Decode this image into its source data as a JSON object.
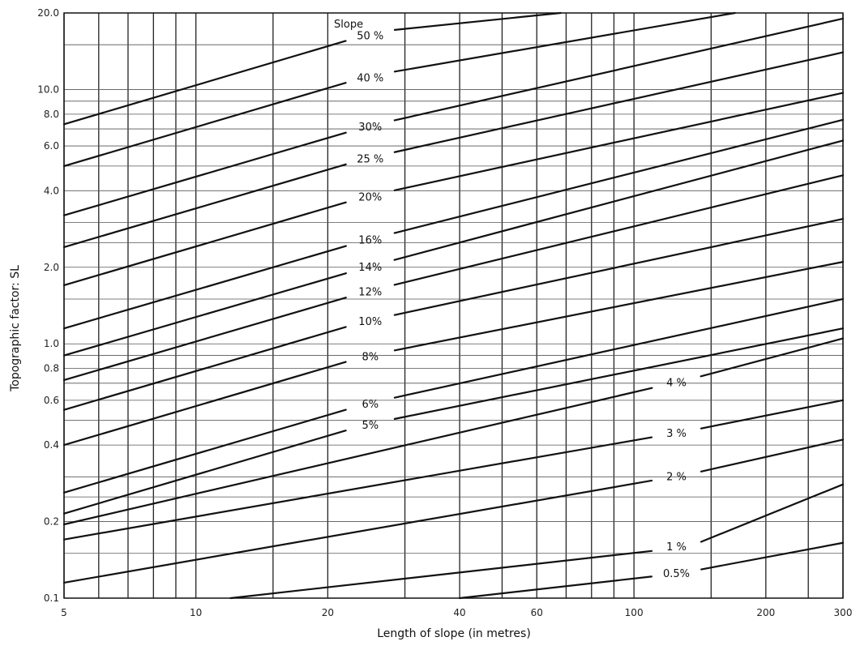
{
  "chart_data": {
    "type": "line",
    "title": "",
    "xlabel": "Length of slope (in metres)",
    "ylabel": "Topographic factor: SL",
    "xscale": "log",
    "yscale": "log",
    "xlim": [
      5,
      300
    ],
    "ylim": [
      0.1,
      20.0
    ],
    "grid": true,
    "legend_title": "Slope",
    "x_ticks": [
      {
        "value": 5,
        "label": "5"
      },
      {
        "value": 10,
        "label": "10"
      },
      {
        "value": 20,
        "label": "20"
      },
      {
        "value": 40,
        "label": "40"
      },
      {
        "value": 60,
        "label": "60"
      },
      {
        "value": 100,
        "label": "100"
      },
      {
        "value": 200,
        "label": "200"
      },
      {
        "value": 300,
        "label": "300"
      }
    ],
    "y_ticks": [
      {
        "value": 0.1,
        "label": "0.1"
      },
      {
        "value": 0.2,
        "label": "0.2"
      },
      {
        "value": 0.4,
        "label": "0.4"
      },
      {
        "value": 0.6,
        "label": "0.6"
      },
      {
        "value": 0.8,
        "label": "0.8"
      },
      {
        "value": 1.0,
        "label": "1.0"
      },
      {
        "value": 2.0,
        "label": "2.0"
      },
      {
        "value": 4.0,
        "label": "4.0"
      },
      {
        "value": 6.0,
        "label": "6.0"
      },
      {
        "value": 8.0,
        "label": "8.0"
      },
      {
        "value": 10.0,
        "label": "10.0"
      },
      {
        "value": 20.0,
        "label": "20.0"
      }
    ],
    "x_grid": [
      5,
      6,
      7,
      8,
      9,
      10,
      15,
      20,
      30,
      40,
      50,
      60,
      70,
      80,
      90,
      100,
      150,
      200,
      250,
      300
    ],
    "y_grid": [
      0.1,
      0.15,
      0.2,
      0.25,
      0.3,
      0.4,
      0.5,
      0.6,
      0.7,
      0.8,
      0.9,
      1.0,
      1.5,
      2.0,
      2.5,
      3.0,
      4.0,
      5.0,
      6.0,
      7.0,
      8.0,
      9.0,
      10.0,
      15.0,
      20.0
    ],
    "series": [
      {
        "name": "50 %",
        "exponent": 0.5,
        "x": [
          5,
          68
        ],
        "y": [
          7.3,
          20.0
        ],
        "label_x": 25
      },
      {
        "name": "40 %",
        "exponent": 0.5,
        "x": [
          5,
          170
        ],
        "y": [
          5.0,
          20.0
        ],
        "label_x": 25
      },
      {
        "name": "30%",
        "exponent": 0.5,
        "x": [
          5,
          300
        ],
        "y": [
          3.2,
          19.0
        ],
        "label_x": 25
      },
      {
        "name": "25 %",
        "exponent": 0.5,
        "x": [
          5,
          300
        ],
        "y": [
          2.4,
          14.0
        ],
        "label_x": 25
      },
      {
        "name": "20%",
        "exponent": 0.5,
        "x": [
          5,
          300
        ],
        "y": [
          1.7,
          9.7
        ],
        "label_x": 25
      },
      {
        "name": "16%",
        "exponent": 0.5,
        "x": [
          5,
          300
        ],
        "y": [
          1.15,
          7.6
        ],
        "label_x": 25
      },
      {
        "name": "14%",
        "exponent": 0.5,
        "x": [
          5,
          300
        ],
        "y": [
          0.9,
          6.3
        ],
        "label_x": 25
      },
      {
        "name": "12%",
        "exponent": 0.5,
        "x": [
          5,
          300
        ],
        "y": [
          0.72,
          4.6
        ],
        "label_x": 25
      },
      {
        "name": "10%",
        "exponent": 0.5,
        "x": [
          5,
          300
        ],
        "y": [
          0.55,
          3.1
        ],
        "label_x": 25
      },
      {
        "name": "8%",
        "exponent": 0.5,
        "x": [
          5,
          300
        ],
        "y": [
          0.4,
          2.1
        ],
        "label_x": 25
      },
      {
        "name": "6%",
        "exponent": 0.5,
        "x": [
          5,
          300
        ],
        "y": [
          0.26,
          1.5
        ],
        "label_x": 25
      },
      {
        "name": "5%",
        "exponent": 0.5,
        "x": [
          5,
          300
        ],
        "y": [
          0.215,
          1.15
        ],
        "label_x": 25
      },
      {
        "name": "4 %",
        "exponent": 0.4,
        "x": [
          5,
          300
        ],
        "y": [
          0.195,
          1.05
        ],
        "label_x": 125
      },
      {
        "name": "3 %",
        "exponent": 0.3,
        "x": [
          5,
          300
        ],
        "y": [
          0.17,
          0.6
        ],
        "label_x": 125
      },
      {
        "name": "2 %",
        "exponent": 0.3,
        "x": [
          5,
          300
        ],
        "y": [
          0.115,
          0.42
        ],
        "label_x": 125
      },
      {
        "name": "1 %",
        "exponent": 0.2,
        "x": [
          12,
          300
        ],
        "y": [
          0.1,
          0.28
        ],
        "label_x": 125
      },
      {
        "name": "0.5%",
        "exponent": 0.2,
        "x": [
          40,
          300
        ],
        "y": [
          0.1,
          0.165
        ],
        "label_x": 125
      }
    ]
  }
}
